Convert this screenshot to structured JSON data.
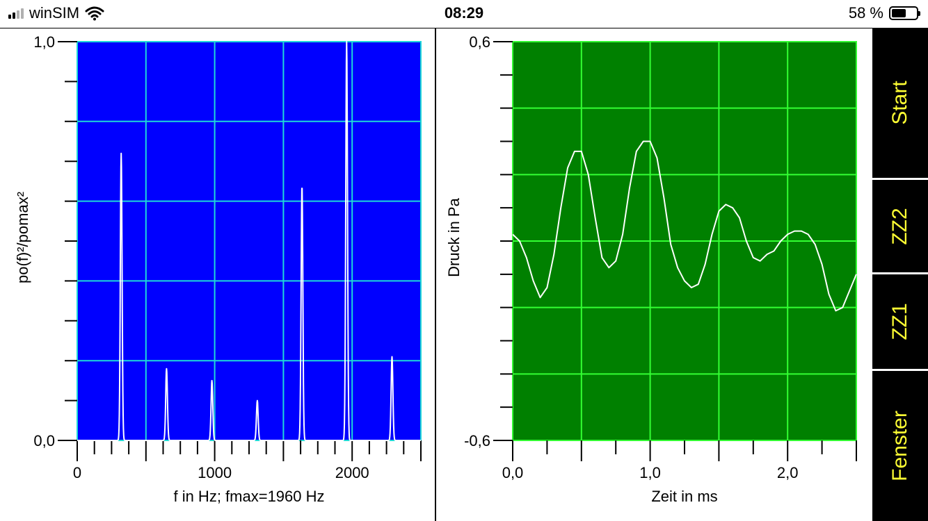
{
  "status_bar": {
    "carrier": "winSIM",
    "time": "08:29",
    "battery_text": "58 %",
    "battery_level": 0.58,
    "signal_bars": 2,
    "icons": [
      "signal-icon",
      "wifi-icon",
      "battery-icon"
    ]
  },
  "sidebar": {
    "buttons": [
      {
        "label": "Start"
      },
      {
        "label": "ZZ2"
      },
      {
        "label": "ZZ1"
      },
      {
        "label": "Fenster"
      }
    ]
  },
  "chart_data": [
    {
      "type": "line",
      "xlabel": "f in Hz; fmax=1960 Hz",
      "ylabel": "po(f)²/pomax²",
      "xlim": [
        0,
        2500
      ],
      "ylim": [
        0,
        1
      ],
      "x_ticks": [
        {
          "v": 0,
          "t": "0"
        },
        {
          "v": 1000,
          "t": "1000"
        },
        {
          "v": 2000,
          "t": "2000"
        }
      ],
      "y_ticks": [
        {
          "v": 0,
          "t": "0,0"
        },
        {
          "v": 1,
          "t": "1,0"
        }
      ],
      "grid": true,
      "background": "#0000ff",
      "grid_color": "#1ed8d8",
      "line_color": "#ffffff",
      "series": [
        {
          "peaks": [
            [
              320,
              0.72
            ],
            [
              650,
              0.18
            ],
            [
              980,
              0.15
            ],
            [
              1310,
              0.1
            ],
            [
              1635,
              0.64
            ],
            [
              1960,
              1.0
            ],
            [
              2290,
              0.21
            ]
          ]
        }
      ]
    },
    {
      "type": "line",
      "xlabel": "Zeit in ms",
      "ylabel": "Druck in Pa",
      "xlim": [
        0,
        2.5
      ],
      "ylim": [
        -0.6,
        0.6
      ],
      "x_ticks": [
        {
          "v": 0,
          "t": "0,0"
        },
        {
          "v": 1,
          "t": "1,0"
        },
        {
          "v": 2,
          "t": "2,0"
        }
      ],
      "y_ticks": [
        {
          "v": -0.6,
          "t": "-0,6"
        },
        {
          "v": 0.6,
          "t": "0,6"
        }
      ],
      "grid": true,
      "background": "#008000",
      "grid_color": "#33ff33",
      "line_color": "#ffffff",
      "series": [
        {
          "x": [
            0,
            0.05,
            0.1,
            0.15,
            0.2,
            0.25,
            0.3,
            0.35,
            0.4,
            0.45,
            0.5,
            0.55,
            0.6,
            0.65,
            0.7,
            0.75,
            0.8,
            0.85,
            0.9,
            0.95,
            1.0,
            1.05,
            1.1,
            1.15,
            1.2,
            1.25,
            1.3,
            1.35,
            1.4,
            1.45,
            1.5,
            1.55,
            1.6,
            1.65,
            1.7,
            1.75,
            1.8,
            1.85,
            1.9,
            1.95,
            2.0,
            2.05,
            2.1,
            2.15,
            2.2,
            2.25,
            2.3,
            2.35,
            2.4,
            2.45,
            2.5
          ],
          "y": [
            0.02,
            0.0,
            -0.05,
            -0.12,
            -0.17,
            -0.14,
            -0.04,
            0.1,
            0.22,
            0.27,
            0.27,
            0.2,
            0.07,
            -0.05,
            -0.08,
            -0.06,
            0.02,
            0.16,
            0.27,
            0.3,
            0.3,
            0.25,
            0.13,
            -0.01,
            -0.08,
            -0.12,
            -0.14,
            -0.13,
            -0.07,
            0.02,
            0.09,
            0.11,
            0.1,
            0.07,
            0.0,
            -0.05,
            -0.06,
            -0.04,
            -0.03,
            0.0,
            0.02,
            0.03,
            0.03,
            0.02,
            -0.01,
            -0.07,
            -0.16,
            -0.21,
            -0.2,
            -0.15,
            -0.1
          ]
        }
      ]
    }
  ]
}
